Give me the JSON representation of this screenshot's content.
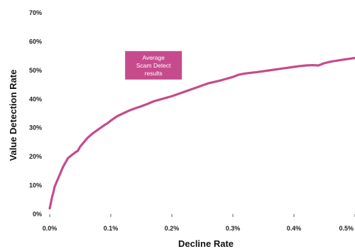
{
  "chart_data": {
    "type": "line",
    "title": "",
    "xlabel": "Decline Rate",
    "ylabel": "Value Detection Rate",
    "xlim": [
      0,
      0.5
    ],
    "ylim": [
      0,
      70
    ],
    "x_ticks": [
      {
        "value": 0.0,
        "label": "0.0%"
      },
      {
        "value": 0.1,
        "label": "0.1%"
      },
      {
        "value": 0.2,
        "label": "0.2%"
      },
      {
        "value": 0.3,
        "label": "0.3%"
      },
      {
        "value": 0.4,
        "label": "0.4%"
      },
      {
        "value": 0.5,
        "label": "0.5%"
      }
    ],
    "y_ticks": [
      {
        "value": 0,
        "label": "0%"
      },
      {
        "value": 10,
        "label": "10%"
      },
      {
        "value": 20,
        "label": "20%"
      },
      {
        "value": 30,
        "label": "30%"
      },
      {
        "value": 40,
        "label": "40%"
      },
      {
        "value": 50,
        "label": "50%"
      },
      {
        "value": 60,
        "label": "60%"
      },
      {
        "value": 70,
        "label": "70%"
      }
    ],
    "grid": false,
    "series": [
      {
        "color": "#c64b8c",
        "x": [
          0.0,
          0.002,
          0.004,
          0.006,
          0.008,
          0.01,
          0.014,
          0.018,
          0.022,
          0.026,
          0.03,
          0.036,
          0.042,
          0.046,
          0.05,
          0.056,
          0.062,
          0.07,
          0.08,
          0.09,
          0.094,
          0.1,
          0.11,
          0.12,
          0.13,
          0.14,
          0.15,
          0.16,
          0.17,
          0.18,
          0.19,
          0.2,
          0.22,
          0.24,
          0.26,
          0.28,
          0.3,
          0.31,
          0.32,
          0.34,
          0.36,
          0.38,
          0.4,
          0.41,
          0.42,
          0.43,
          0.44,
          0.45,
          0.46,
          0.48,
          0.5
        ],
        "y": [
          2.0,
          4.0,
          6.0,
          7.5,
          9.5,
          10.5,
          12.5,
          14.5,
          16.5,
          18.0,
          19.5,
          20.5,
          21.5,
          22.0,
          23.5,
          25.0,
          26.5,
          28.0,
          29.5,
          31.0,
          31.5,
          32.5,
          34.0,
          35.0,
          36.0,
          36.8,
          37.5,
          38.3,
          39.2,
          39.8,
          40.4,
          41.0,
          42.5,
          44.0,
          45.5,
          46.5,
          47.7,
          48.5,
          48.9,
          49.4,
          50.0,
          50.6,
          51.2,
          51.5,
          51.7,
          51.8,
          51.7,
          52.5,
          53.0,
          53.7,
          54.3
        ]
      }
    ],
    "annotation": {
      "lines": [
        "Average",
        "Scam Detect",
        "results"
      ],
      "color": "#c64b8c",
      "x": 0.17,
      "y": 51.5
    }
  }
}
